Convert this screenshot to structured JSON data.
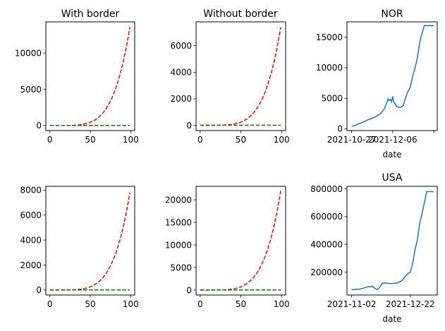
{
  "chart_data": [
    {
      "id": "p1",
      "type": "line",
      "title": "With border",
      "xlabel": "",
      "xlim": [
        -5,
        105
      ],
      "ylim": [
        -700,
        14300
      ],
      "xticks": [
        0,
        50,
        100
      ],
      "xtick_labels": [
        "0",
        "50",
        "100"
      ],
      "yticks": [
        0,
        5000,
        10000
      ],
      "ytick_labels": [
        "0",
        "5000",
        "10000"
      ],
      "series": [
        {
          "style": "dashed",
          "color": "#ff0000",
          "kind": "power",
          "scale": 13600,
          "exponent": 5
        },
        {
          "style": "dashed",
          "color": "#008000",
          "kind": "constant",
          "value": 10
        }
      ]
    },
    {
      "id": "p2",
      "type": "line",
      "title": "Without border",
      "xlabel": "",
      "xlim": [
        -5,
        105
      ],
      "ylim": [
        -400,
        7800
      ],
      "xticks": [
        0,
        50,
        100
      ],
      "xtick_labels": [
        "0",
        "50",
        "100"
      ],
      "yticks": [
        0,
        2000,
        4000,
        6000
      ],
      "ytick_labels": [
        "0",
        "2000",
        "4000",
        "6000"
      ],
      "series": [
        {
          "style": "dashed",
          "color": "#ff0000",
          "kind": "power",
          "scale": 7400,
          "exponent": 5
        },
        {
          "style": "dashed",
          "color": "#008000",
          "kind": "constant",
          "value": 5
        }
      ]
    },
    {
      "id": "p3",
      "type": "line",
      "title": "NOR",
      "xlabel": "date",
      "xlim": [
        -4,
        73
      ],
      "ylim": [
        -300,
        17500
      ],
      "xticks": [
        0,
        35,
        70
      ],
      "xtick_labels": [
        "2021-10-27",
        "2021-12-06",
        ""
      ],
      "yticks": [
        0,
        5000,
        10000,
        15000
      ],
      "ytick_labels": [
        "0",
        "5000",
        "10000",
        "15000"
      ],
      "series": [
        {
          "style": "solid",
          "color": "#1f77b4",
          "x": [
            0,
            3,
            6,
            9,
            12,
            15,
            18,
            20,
            22,
            24,
            26,
            28,
            29,
            30,
            31,
            32,
            33,
            34,
            35,
            36,
            37,
            38,
            40,
            42,
            44,
            46,
            48,
            50,
            52,
            54,
            56,
            58,
            60,
            62,
            64,
            66,
            68,
            70
          ],
          "y": [
            400,
            550,
            800,
            1050,
            1300,
            1550,
            1750,
            1900,
            2150,
            2400,
            2800,
            3300,
            3800,
            4300,
            4900,
            4600,
            4800,
            4400,
            5300,
            4300,
            4100,
            3700,
            3500,
            3500,
            3800,
            5100,
            6100,
            6800,
            8600,
            9900,
            11600,
            14100,
            15600,
            16900,
            16900,
            16900,
            16900,
            16900
          ]
        }
      ]
    },
    {
      "id": "p4",
      "type": "line",
      "title": "",
      "xlabel": "",
      "xlim": [
        -5,
        105
      ],
      "ylim": [
        -400,
        8300
      ],
      "xticks": [
        0,
        50,
        100
      ],
      "xtick_labels": [
        "0",
        "50",
        "100"
      ],
      "yticks": [
        0,
        2000,
        4000,
        6000,
        8000
      ],
      "ytick_labels": [
        "0",
        "2000",
        "4000",
        "6000",
        "8000"
      ],
      "series": [
        {
          "style": "dashed",
          "color": "#ff0000",
          "kind": "power",
          "scale": 7800,
          "exponent": 5
        },
        {
          "style": "dashed",
          "color": "#008000",
          "kind": "constant",
          "value": 5
        }
      ]
    },
    {
      "id": "p5",
      "type": "line",
      "title": "",
      "xlabel": "",
      "xlim": [
        -5,
        105
      ],
      "ylim": [
        -1100,
        23000
      ],
      "xticks": [
        0,
        50,
        100
      ],
      "xtick_labels": [
        "0",
        "50",
        "100"
      ],
      "yticks": [
        0,
        5000,
        10000,
        15000,
        20000
      ],
      "ytick_labels": [
        "0",
        "5000",
        "10000",
        "15000",
        "20000"
      ],
      "series": [
        {
          "style": "dashed",
          "color": "#ff0000",
          "kind": "power",
          "scale": 22000,
          "exponent": 5
        },
        {
          "style": "dashed",
          "color": "#008000",
          "kind": "constant",
          "value": 20
        }
      ]
    },
    {
      "id": "p6",
      "type": "line",
      "title": "USA",
      "xlabel": "date",
      "xlim": [
        -4,
        73
      ],
      "ylim": [
        35000,
        818000
      ],
      "xticks": [
        0,
        50
      ],
      "xtick_labels": [
        "2021-11-02",
        "2021-12-22"
      ],
      "yticks": [
        200000,
        400000,
        600000,
        800000
      ],
      "ytick_labels": [
        "200000",
        "400000",
        "600000",
        "800000"
      ],
      "series": [
        {
          "style": "solid",
          "color": "#1f77b4",
          "x": [
            0,
            2,
            4,
            6,
            8,
            10,
            12,
            14,
            16,
            18,
            20,
            22,
            24,
            26,
            28,
            30,
            32,
            34,
            36,
            38,
            40,
            42,
            44,
            46,
            48,
            50,
            52,
            54,
            56,
            58,
            60,
            62,
            64,
            66,
            68,
            70
          ],
          "y": [
            75000,
            74000,
            77000,
            76000,
            80000,
            85000,
            90000,
            95000,
            95000,
            98000,
            80000,
            75000,
            90000,
            120000,
            122000,
            120000,
            118000,
            118000,
            120000,
            120000,
            125000,
            135000,
            150000,
            170000,
            190000,
            200000,
            260000,
            360000,
            430000,
            550000,
            620000,
            700000,
            780000,
            780000,
            780000,
            780000
          ]
        }
      ]
    }
  ]
}
